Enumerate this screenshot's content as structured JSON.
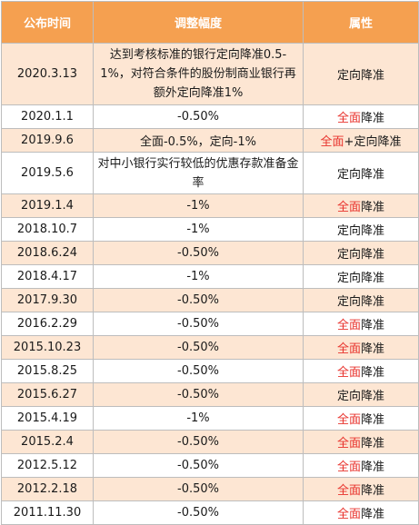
{
  "header": {
    "date": "公布时间",
    "scale": "调整幅度",
    "attribute": "属性"
  },
  "rows": [
    {
      "date": "2020.3.13",
      "scale": "达到考核标准的银行定向降准0.5-1%，对符合条件的股份制商业银行再额外定向降准1%",
      "attr_red": "",
      "attr_black": "定向降准"
    },
    {
      "date": "2020.1.1",
      "scale": "-0.50%",
      "attr_red": "全面",
      "attr_black": "降准"
    },
    {
      "date": "2019.9.6",
      "scale": "全面-0.5%，定向-1%",
      "attr_red": "全面",
      "attr_black": "+定向降准"
    },
    {
      "date": "2019.5.6",
      "scale": "对中小银行实行较低的优惠存款准备金率",
      "attr_red": "",
      "attr_black": "定向降准"
    },
    {
      "date": "2019.1.4",
      "scale": "-1%",
      "attr_red": "全面",
      "attr_black": "降准"
    },
    {
      "date": "2018.10.7",
      "scale": "-1%",
      "attr_red": "",
      "attr_black": "定向降准"
    },
    {
      "date": "2018.6.24",
      "scale": "-0.50%",
      "attr_red": "",
      "attr_black": "定向降准"
    },
    {
      "date": "2018.4.17",
      "scale": "-1%",
      "attr_red": "",
      "attr_black": "定向降准"
    },
    {
      "date": "2017.9.30",
      "scale": "-0.50%",
      "attr_red": "",
      "attr_black": "定向降准"
    },
    {
      "date": "2016.2.29",
      "scale": "-0.50%",
      "attr_red": "全面",
      "attr_black": "降准"
    },
    {
      "date": "2015.10.23",
      "scale": "-0.50%",
      "attr_red": "全面",
      "attr_black": "降准"
    },
    {
      "date": "2015.8.25",
      "scale": "-0.50%",
      "attr_red": "全面",
      "attr_black": "降准"
    },
    {
      "date": "2015.6.27",
      "scale": "-0.50%",
      "attr_red": "",
      "attr_black": "定向降准"
    },
    {
      "date": "2015.4.19",
      "scale": "-1%",
      "attr_red": "全面",
      "attr_black": "降准"
    },
    {
      "date": "2015.2.4",
      "scale": "-0.50%",
      "attr_red": "全面",
      "attr_black": "降准"
    },
    {
      "date": "2012.5.12",
      "scale": "-0.50%",
      "attr_red": "全面",
      "attr_black": "降准"
    },
    {
      "date": "2012.2.18",
      "scale": "-0.50%",
      "attr_red": "全面",
      "attr_black": "降准"
    },
    {
      "date": "2011.11.30",
      "scale": "-0.50%",
      "attr_red": "全面",
      "attr_black": "降准"
    }
  ],
  "colors": {
    "header_bg": "#f5a050",
    "odd_row_bg": "#fde6d3",
    "even_row_bg": "#ffffff",
    "highlight_text": "#e8312b",
    "border": "#bdbdbd"
  }
}
